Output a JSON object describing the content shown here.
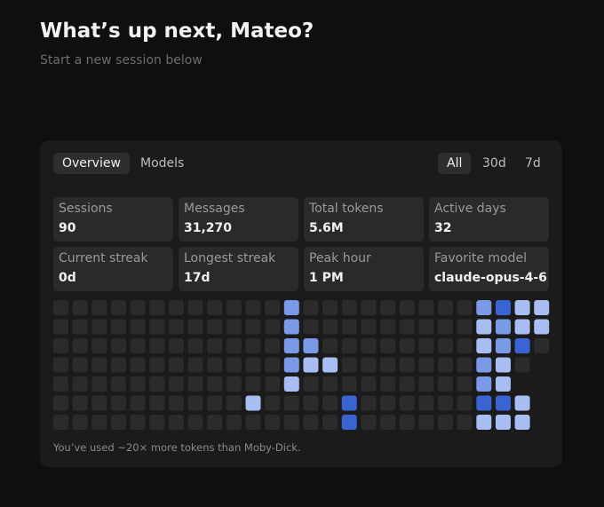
{
  "header": {
    "title": "What’s up next, Mateo?",
    "subtitle": "Start a new session below"
  },
  "tabs": [
    "Overview",
    "Models"
  ],
  "active_tab": 0,
  "ranges": [
    "All",
    "30d",
    "7d"
  ],
  "active_range": 0,
  "stats": [
    {
      "label": "Sessions",
      "value": "90"
    },
    {
      "label": "Messages",
      "value": "31,270"
    },
    {
      "label": "Total tokens",
      "value": "5.6M"
    },
    {
      "label": "Active days",
      "value": "32"
    },
    {
      "label": "Current streak",
      "value": "0d"
    },
    {
      "label": "Longest streak",
      "value": "17d"
    },
    {
      "label": "Peak hour",
      "value": "1 PM"
    },
    {
      "label": "Favorite model",
      "value": "claude-opus-4-6"
    }
  ],
  "heatmap": {
    "colors": [
      "#2b2b2b",
      "#a8bef3",
      "#7a9ae8",
      "#3a63d4"
    ],
    "levels": [
      [
        0,
        0,
        0,
        0,
        0,
        0,
        0,
        0,
        0,
        0,
        0,
        0,
        2,
        0,
        0,
        0,
        0,
        0,
        0,
        0,
        0,
        0,
        2,
        3,
        1,
        1
      ],
      [
        0,
        0,
        0,
        0,
        0,
        0,
        0,
        0,
        0,
        0,
        0,
        0,
        2,
        0,
        0,
        0,
        0,
        0,
        0,
        0,
        0,
        0,
        1,
        2,
        1,
        1
      ],
      [
        0,
        0,
        0,
        0,
        0,
        0,
        0,
        0,
        0,
        0,
        0,
        0,
        2,
        2,
        0,
        0,
        0,
        0,
        0,
        0,
        0,
        0,
        1,
        2,
        3,
        0
      ],
      [
        0,
        0,
        0,
        0,
        0,
        0,
        0,
        0,
        0,
        0,
        0,
        0,
        2,
        1,
        1,
        0,
        0,
        0,
        0,
        0,
        0,
        0,
        2,
        1,
        0,
        null
      ],
      [
        0,
        0,
        0,
        0,
        0,
        0,
        0,
        0,
        0,
        0,
        0,
        0,
        1,
        0,
        0,
        0,
        0,
        0,
        0,
        0,
        0,
        0,
        2,
        1,
        null,
        null
      ],
      [
        0,
        0,
        0,
        0,
        0,
        0,
        0,
        0,
        0,
        0,
        1,
        0,
        0,
        0,
        0,
        3,
        0,
        0,
        0,
        0,
        0,
        0,
        3,
        3,
        1,
        null
      ],
      [
        0,
        0,
        0,
        0,
        0,
        0,
        0,
        0,
        0,
        0,
        0,
        0,
        0,
        0,
        0,
        3,
        0,
        0,
        0,
        0,
        0,
        0,
        1,
        1,
        1,
        null
      ]
    ]
  },
  "footnote": "You’ve used ~20× more tokens than Moby-Dick."
}
